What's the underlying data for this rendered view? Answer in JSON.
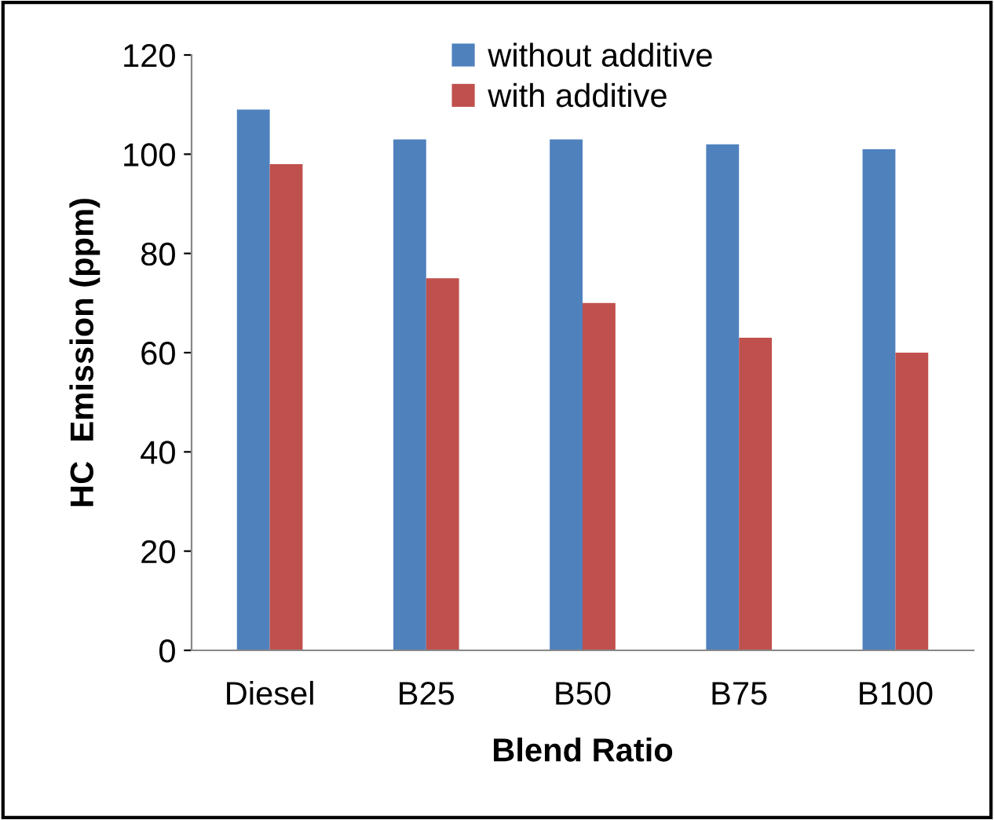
{
  "chart_data": {
    "type": "bar",
    "xlabel": "Blend Ratio",
    "ylabel": "HC  Emission (ppm)",
    "categories": [
      "Diesel",
      "B25",
      "B50",
      "B75",
      "B100"
    ],
    "series": [
      {
        "name": "without additive",
        "color": "#4f81bd",
        "values": [
          109,
          103,
          103,
          102,
          101
        ]
      },
      {
        "name": "with additive",
        "color": "#c0504d",
        "values": [
          98,
          75,
          70,
          63,
          60
        ]
      }
    ],
    "ylim": [
      0,
      120
    ],
    "yticks": [
      0,
      20,
      40,
      60,
      80,
      100,
      120
    ],
    "grid": false,
    "legend": "top"
  }
}
